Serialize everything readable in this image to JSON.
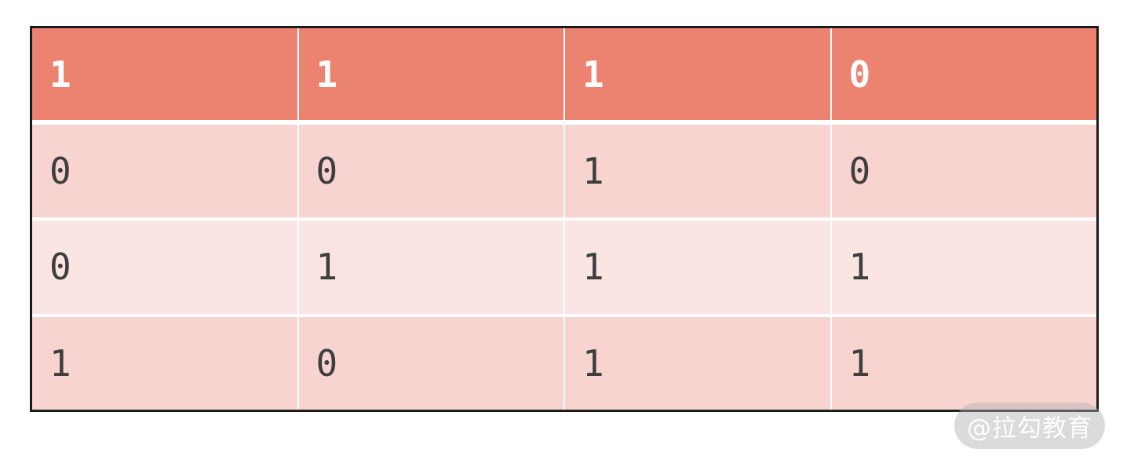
{
  "colors": {
    "header_bg": "#EC8370",
    "row_odd_bg": "#F7D4CF",
    "row_even_bg": "#FBE5E2",
    "header_text": "#FFFFFF",
    "body_text": "#3E3E3E",
    "table_border": "#1B1B1B"
  },
  "chart_data": {
    "type": "table",
    "title": "",
    "columns": 4,
    "header_row": [
      "1",
      "1",
      "1",
      "0"
    ],
    "rows": [
      [
        "0",
        "0",
        "1",
        "0"
      ],
      [
        "0",
        "1",
        "1",
        "1"
      ],
      [
        "1",
        "0",
        "1",
        "1"
      ]
    ],
    "layout_hints": {
      "equal_column_widths": true,
      "header_style": "salmon background, white bold digits",
      "body_style": "alternating light pink rows, dark gray digits",
      "separators": "thin white lines between cells, dark outer border"
    }
  },
  "table": {
    "header": [
      "1",
      "1",
      "1",
      "0"
    ],
    "rows": [
      [
        "0",
        "0",
        "1",
        "0"
      ],
      [
        "0",
        "1",
        "1",
        "1"
      ],
      [
        "1",
        "0",
        "1",
        "1"
      ]
    ]
  },
  "watermark": {
    "text": "@拉勾教育"
  }
}
